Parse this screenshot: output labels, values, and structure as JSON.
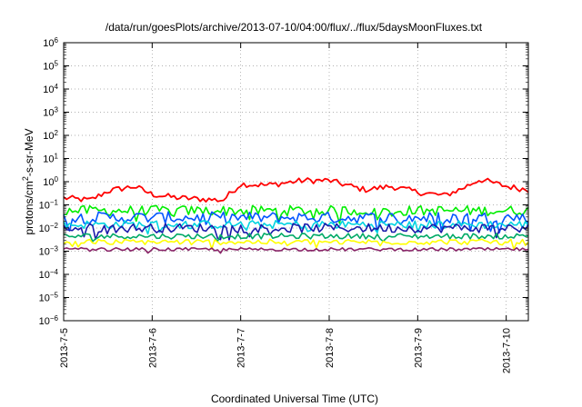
{
  "chart_data": {
    "type": "line",
    "title": "/data/run/goesPlots/archive/2013-07-10/04:00/flux/../flux/5daysMoonFluxes.txt",
    "xlabel": "Coordinated Universal Time (UTC)",
    "ylabel_base": "protons/cm",
    "ylabel_sup": "2",
    "ylabel_rest": "-s-sr-MeV",
    "y_scale": "log",
    "ylim_exp": [
      -6,
      6
    ],
    "y_tick_exponents": [
      -6,
      -5,
      -4,
      -3,
      -2,
      -1,
      0,
      1,
      2,
      3,
      4,
      5,
      6
    ],
    "x_tick_labels": [
      "2013-7-5",
      "2013-7-6",
      "2013-7-7",
      "2013-7-8",
      "2013-7-9",
      "2013-7-10"
    ],
    "x_range_days": [
      0,
      5.25
    ],
    "grid": true,
    "legend": "none",
    "series": [
      {
        "color": "#ff0000",
        "base_log": -0.75,
        "anchors": [
          [
            0,
            -0.7
          ],
          [
            0.3,
            -0.8
          ],
          [
            0.5,
            -0.4
          ],
          [
            0.8,
            -0.2
          ],
          [
            1.0,
            -0.55
          ],
          [
            1.3,
            -0.7
          ],
          [
            1.8,
            -0.8
          ],
          [
            2.0,
            -0.1
          ],
          [
            2.3,
            -0.15
          ],
          [
            2.7,
            0.05
          ],
          [
            3.0,
            0.05
          ],
          [
            3.4,
            -0.35
          ],
          [
            3.7,
            -0.2
          ],
          [
            4.0,
            -0.45
          ],
          [
            4.3,
            -0.6
          ],
          [
            4.5,
            -0.3
          ],
          [
            4.7,
            0.1
          ],
          [
            5.0,
            -0.2
          ],
          [
            5.25,
            -0.35
          ]
        ],
        "amp": 0.13
      },
      {
        "color": "#00ee00",
        "base_log": -1.25,
        "amp": 0.22
      },
      {
        "color": "#0055ff",
        "base_log": -1.55,
        "amp": 0.25
      },
      {
        "color": "#00d4e0",
        "base_log": -1.85,
        "amp": 0.18
      },
      {
        "color": "#1a1aaa",
        "base_log": -2.0,
        "amp": 0.2
      },
      {
        "color": "#00aa66",
        "base_log": -2.35,
        "amp": 0.12
      },
      {
        "color": "#ffff00",
        "base_log": -2.6,
        "amp": 0.12
      },
      {
        "color": "#882266",
        "base_log": -2.92,
        "amp": 0.07
      }
    ]
  }
}
